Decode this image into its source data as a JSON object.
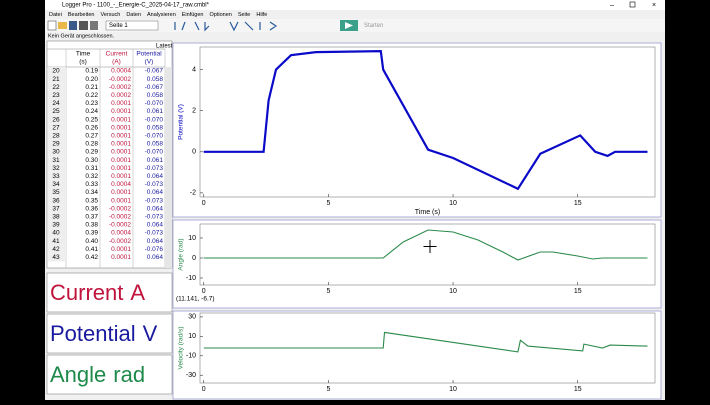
{
  "window": {
    "title": "Logger Pro - 1100_-_Energie-C_2025-04-17_raw.cmbl*",
    "menu": [
      "Datei",
      "Bearbeiten",
      "Versuch",
      "Daten",
      "Analysieren",
      "Einfügen",
      "Optionen",
      "Seite",
      "Hilfe"
    ],
    "page_select": "Seite 1",
    "start_button": "Starten",
    "status": "Kein Gerät angeschlossen."
  },
  "table": {
    "title": "Latest",
    "columns": [
      {
        "name": "Time",
        "unit": "(s)",
        "color": "#000000"
      },
      {
        "name": "Current",
        "unit": "(A)",
        "color": "#c0143c"
      },
      {
        "name": "Potential",
        "unit": "(V)",
        "color": "#1a1aa0"
      }
    ],
    "rows": [
      [
        "20",
        "0.19",
        "0.0004",
        "-0.067"
      ],
      [
        "21",
        "0.20",
        "-0.0002",
        "0.058"
      ],
      [
        "22",
        "0.21",
        "-0.0002",
        "-0.067"
      ],
      [
        "23",
        "0.22",
        "0.0002",
        "0.058"
      ],
      [
        "24",
        "0.23",
        "0.0001",
        "-0.070"
      ],
      [
        "25",
        "0.24",
        "0.0001",
        "0.061"
      ],
      [
        "26",
        "0.25",
        "0.0001",
        "-0.070"
      ],
      [
        "27",
        "0.26",
        "0.0001",
        "0.058"
      ],
      [
        "28",
        "0.27",
        "0.0001",
        "-0.070"
      ],
      [
        "29",
        "0.28",
        "0.0001",
        "0.058"
      ],
      [
        "30",
        "0.29",
        "0.0001",
        "-0.070"
      ],
      [
        "31",
        "0.30",
        "0.0001",
        "0.061"
      ],
      [
        "32",
        "0.31",
        "0.0001",
        "-0.073"
      ],
      [
        "33",
        "0.32",
        "0.0001",
        "0.064"
      ],
      [
        "34",
        "0.33",
        "0.0004",
        "-0.073"
      ],
      [
        "35",
        "0.34",
        "0.0001",
        "0.064"
      ],
      [
        "36",
        "0.35",
        "0.0001",
        "-0.073"
      ],
      [
        "37",
        "0.36",
        "-0.0002",
        "0.064"
      ],
      [
        "38",
        "0.37",
        "-0.0002",
        "-0.073"
      ],
      [
        "39",
        "0.38",
        "-0.0002",
        "0.064"
      ],
      [
        "40",
        "0.39",
        "0.0004",
        "-0.073"
      ],
      [
        "41",
        "0.40",
        "-0.0002",
        "0.064"
      ],
      [
        "42",
        "0.41",
        "0.0001",
        "-0.076"
      ],
      [
        "43",
        "0.42",
        "0.0001",
        "0.064"
      ]
    ]
  },
  "meters": [
    {
      "label": "Current",
      "unit": "A",
      "color": "#c0143c"
    },
    {
      "label": "Potential",
      "unit": "V",
      "color": "#1a1aa0"
    },
    {
      "label": "Angle",
      "unit": "rad",
      "color": "#1e8a4a"
    }
  ],
  "graphs": [
    {
      "type": "line",
      "y_label": "Potential (V)",
      "x_label": "Time (s)",
      "color": "#0a0ac8",
      "x": [
        0,
        2.4,
        2.6,
        2.9,
        3.5,
        4.5,
        7.1,
        7.2,
        9,
        10,
        12.6,
        13.5,
        15.1,
        15.7,
        16.2,
        16.5,
        17.8
      ],
      "y": [
        0,
        0,
        2.5,
        4,
        4.7,
        4.85,
        4.9,
        4.0,
        0.1,
        -0.3,
        -1.8,
        -0.1,
        0.8,
        0,
        -0.2,
        0,
        0
      ],
      "xlim": [
        -0.15,
        18.1
      ],
      "ylim": [
        -2.2,
        5.1
      ],
      "xticks": [
        0,
        5,
        10,
        15
      ],
      "yticks": [
        -2,
        0,
        2,
        4
      ]
    },
    {
      "type": "line",
      "y_label": "Angle (rad)",
      "color": "#2a8a4a",
      "x": [
        0,
        7.2,
        8,
        9,
        10,
        11,
        12,
        12.6,
        13.5,
        14,
        15,
        15.6,
        16,
        17.8
      ],
      "y": [
        0,
        0,
        8,
        14,
        13,
        9,
        3,
        -1,
        3,
        3,
        1,
        -0.5,
        0,
        0
      ],
      "xlim": [
        -0.15,
        18.1
      ],
      "ylim": [
        -13.5,
        17
      ],
      "xticks": [
        0,
        5,
        10,
        15
      ],
      "yticks": [
        -10,
        0,
        10
      ]
    },
    {
      "type": "line",
      "y_label": "Velocity (rad/s)",
      "color": "#2a8a4a",
      "x": [
        0,
        7.2,
        7.25,
        12.6,
        12.7,
        13,
        15.2,
        15.25,
        16,
        16.3,
        17.8
      ],
      "y": [
        -2,
        -2,
        14,
        -6,
        6,
        0,
        -5,
        2,
        -2,
        1,
        0
      ],
      "xlim": [
        -0.15,
        18.1
      ],
      "ylim": [
        -38,
        34
      ],
      "xticks": [
        0,
        5,
        10,
        15
      ],
      "yticks": [
        -30,
        -10,
        10,
        30
      ]
    }
  ],
  "cursor_readout": "(11.141, -6.7)"
}
